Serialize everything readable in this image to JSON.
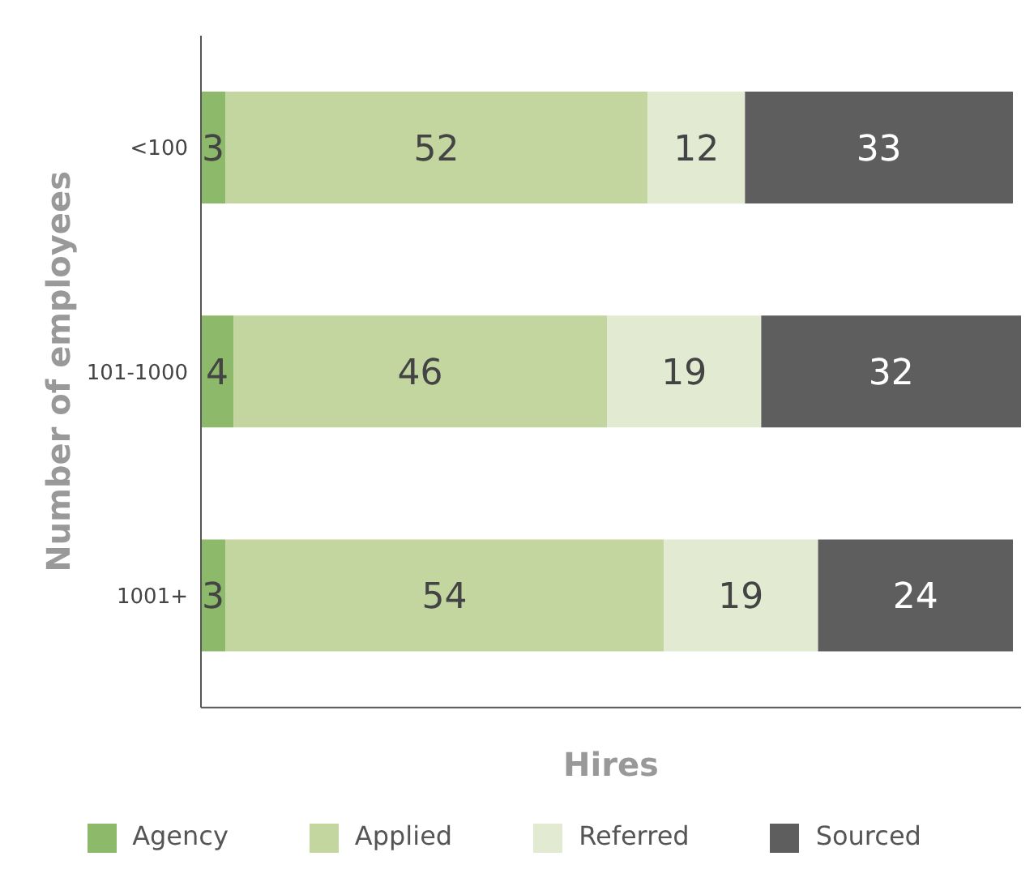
{
  "chart_data": {
    "type": "bar",
    "orientation": "horizontal",
    "stacked": true,
    "xlabel": "Hires",
    "ylabel": "Number of employees",
    "categories": [
      "<100",
      "101-1000",
      "1001+"
    ],
    "series": [
      {
        "name": "Agency",
        "color": "#8db96a",
        "values": [
          3,
          4,
          3
        ]
      },
      {
        "name": "Applied",
        "color": "#c3d6a0",
        "values": [
          52,
          46,
          54
        ]
      },
      {
        "name": "Referred",
        "color": "#e2ebd1",
        "values": [
          12,
          19,
          19
        ]
      },
      {
        "name": "Sourced",
        "color": "#5e5e5e",
        "values": [
          33,
          32,
          24
        ]
      }
    ],
    "data_labels": true,
    "legend": "bottom",
    "grid": false
  }
}
